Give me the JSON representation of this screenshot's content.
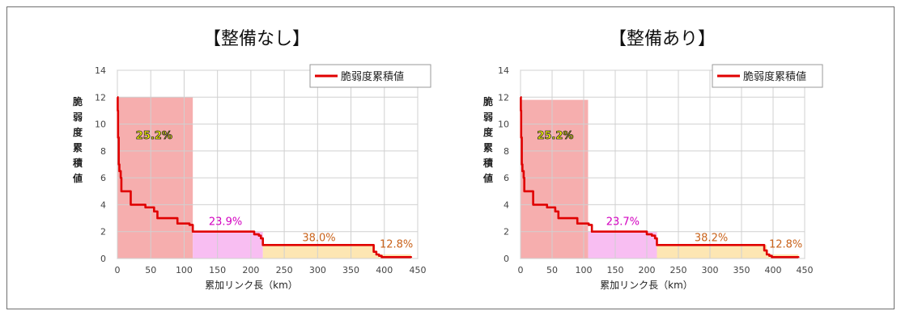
{
  "chart_data": [
    {
      "type": "line",
      "title": "【整備なし】",
      "xlabel": "累加リンク長（km）",
      "ylabel": "脆弱度累積値",
      "xlim": [
        0,
        450
      ],
      "ylim": [
        0,
        14
      ],
      "xticks": [
        0,
        50,
        100,
        150,
        200,
        250,
        300,
        350,
        400,
        450
      ],
      "yticks": [
        0,
        2,
        4,
        6,
        8,
        10,
        12,
        14
      ],
      "grid": true,
      "legend": "top-right",
      "series": [
        {
          "name": "脆弱度累積値",
          "color": "#e00000",
          "points": [
            [
              0,
              12
            ],
            [
              0.5,
              11
            ],
            [
              1,
              9
            ],
            [
              2,
              7
            ],
            [
              3,
              6.5
            ],
            [
              5,
              6
            ],
            [
              6,
              5
            ],
            [
              18,
              5
            ],
            [
              20,
              4
            ],
            [
              40,
              4
            ],
            [
              42,
              3.8
            ],
            [
              52,
              3.8
            ],
            [
              55,
              3.5
            ],
            [
              58,
              3.5
            ],
            [
              60,
              3
            ],
            [
              88,
              3
            ],
            [
              90,
              2.6
            ],
            [
              105,
              2.6
            ],
            [
              108,
              2.5
            ],
            [
              113,
              2
            ],
            [
              200,
              2
            ],
            [
              205,
              1.8
            ],
            [
              212,
              1.7
            ],
            [
              215,
              1.5
            ],
            [
              218,
              1
            ],
            [
              380,
              1
            ],
            [
              384,
              0.5
            ],
            [
              388,
              0.3
            ],
            [
              392,
              0.2
            ],
            [
              396,
              0.1
            ],
            [
              440,
              0.05
            ]
          ]
        }
      ],
      "regions": [
        {
          "x": [
            0,
            113
          ],
          "top": 12,
          "color": "#f5a0a0",
          "label": "25.2%",
          "label_color": "#ffff00",
          "label_x": 55,
          "label_y": 9.2
        },
        {
          "x": [
            113,
            218
          ],
          "top": 2,
          "color": "#f7b3f0",
          "label": "23.9%",
          "label_color": "#d300c0",
          "label_x": 162,
          "label_y": 2.8
        },
        {
          "x": [
            218,
            386
          ],
          "top": 1,
          "color": "#fde2a6",
          "label": "38.0%",
          "label_color": "#c9621a",
          "label_x": 302,
          "label_y": 1.6
        },
        {
          "x": [
            386,
            440
          ],
          "top": 0.3,
          "color": "#fde2a6",
          "label": "12.8%",
          "label_color": "#c9621a",
          "label_x": 418,
          "label_y": 1.1
        }
      ]
    },
    {
      "type": "line",
      "title": "【整備あり】",
      "xlabel": "累加リンク長（km）",
      "ylabel": "脆弱度累積値",
      "xlim": [
        0,
        450
      ],
      "ylim": [
        0,
        14
      ],
      "xticks": [
        0,
        50,
        100,
        150,
        200,
        250,
        300,
        350,
        400,
        450
      ],
      "yticks": [
        0,
        2,
        4,
        6,
        8,
        10,
        12,
        14
      ],
      "grid": true,
      "legend": "top-right",
      "series": [
        {
          "name": "脆弱度累積値",
          "color": "#e00000",
          "points": [
            [
              0,
              12
            ],
            [
              0.5,
              11
            ],
            [
              1,
              9
            ],
            [
              2,
              7
            ],
            [
              3,
              6.5
            ],
            [
              5,
              6
            ],
            [
              6,
              5
            ],
            [
              18,
              5
            ],
            [
              20,
              4
            ],
            [
              40,
              4
            ],
            [
              42,
              3.8
            ],
            [
              52,
              3.8
            ],
            [
              55,
              3.5
            ],
            [
              58,
              3.5
            ],
            [
              60,
              3
            ],
            [
              88,
              3
            ],
            [
              90,
              2.6
            ],
            [
              105,
              2.6
            ],
            [
              108,
              2.5
            ],
            [
              113,
              2
            ],
            [
              195,
              2
            ],
            [
              200,
              1.8
            ],
            [
              208,
              1.7
            ],
            [
              213,
              1.5
            ],
            [
              216,
              1
            ],
            [
              383,
              1
            ],
            [
              386,
              0.6
            ],
            [
              390,
              0.3
            ],
            [
              394,
              0.2
            ],
            [
              398,
              0.1
            ],
            [
              440,
              0.05
            ]
          ]
        }
      ],
      "regions": [
        {
          "x": [
            0,
            107
          ],
          "top": 11.8,
          "color": "#f5a0a0",
          "label": "25.2%",
          "label_color": "#ffff00",
          "label_x": 55,
          "label_y": 9.2
        },
        {
          "x": [
            107,
            216
          ],
          "top": 2,
          "color": "#f7b3f0",
          "label": "23.7%",
          "label_color": "#d300c0",
          "label_x": 162,
          "label_y": 2.8
        },
        {
          "x": [
            216,
            390
          ],
          "top": 1,
          "color": "#fde2a6",
          "label": "38.2%",
          "label_color": "#c9621a",
          "label_x": 302,
          "label_y": 1.6
        },
        {
          "x": [
            390,
            440
          ],
          "top": 0.3,
          "color": "#fde2a6",
          "label": "12.8%",
          "label_color": "#c9621a",
          "label_x": 420,
          "label_y": 1.1
        }
      ]
    }
  ]
}
